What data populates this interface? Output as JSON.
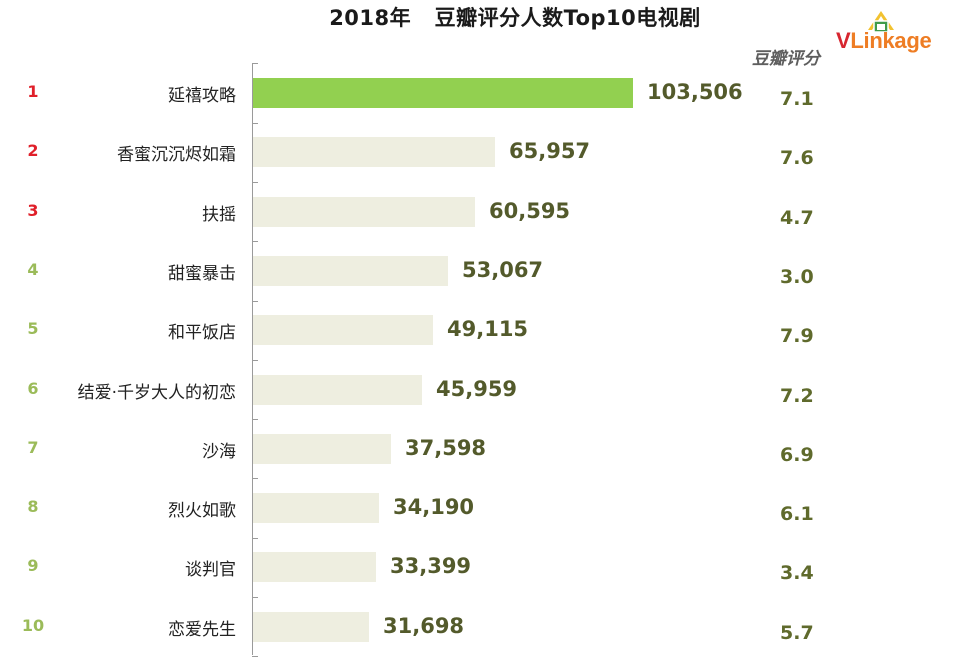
{
  "title": "2018年   豆瓣评分人数Top10电视剧",
  "logo": {
    "brand_v": "V",
    "brand_rest": "Linkage"
  },
  "score_header": "豆瓣评分",
  "colors": {
    "rank_top3": "#e0202a",
    "rank_rest": "#9bbb59",
    "bar_highlight": "#92d050",
    "bar_default": "#eeeee0",
    "value_text": "#535a2b",
    "score_text": "#5f6a2c"
  },
  "chart_data": {
    "type": "bar",
    "orientation": "horizontal",
    "title": "2018年   豆瓣评分人数Top10电视剧",
    "ranks": [
      "1",
      "2",
      "3",
      "4",
      "5",
      "6",
      "7",
      "8",
      "9",
      "10"
    ],
    "categories": [
      "延禧攻略",
      "香蜜沉沉烬如霜",
      "扶摇",
      "甜蜜暴击",
      "和平饭店",
      "结爱·千岁大人的初恋",
      "沙海",
      "烈火如歌",
      "谈判官",
      "恋爱先生"
    ],
    "values": [
      103506,
      65957,
      60595,
      53067,
      49115,
      45959,
      37598,
      34190,
      33399,
      31698
    ],
    "value_labels": [
      "103,506",
      "65,957",
      "60,595",
      "53,067",
      "49,115",
      "45,959",
      "37,598",
      "34,190",
      "33,399",
      "31,698"
    ],
    "scores": [
      "7.1",
      "7.6",
      "4.7",
      "3.0",
      "7.9",
      "7.2",
      "6.9",
      "6.1",
      "3.4",
      "5.7"
    ],
    "score_label": "豆瓣评分",
    "xlim": [
      0,
      103506
    ],
    "highlight_index": 0,
    "grid": false,
    "legend": "none"
  }
}
